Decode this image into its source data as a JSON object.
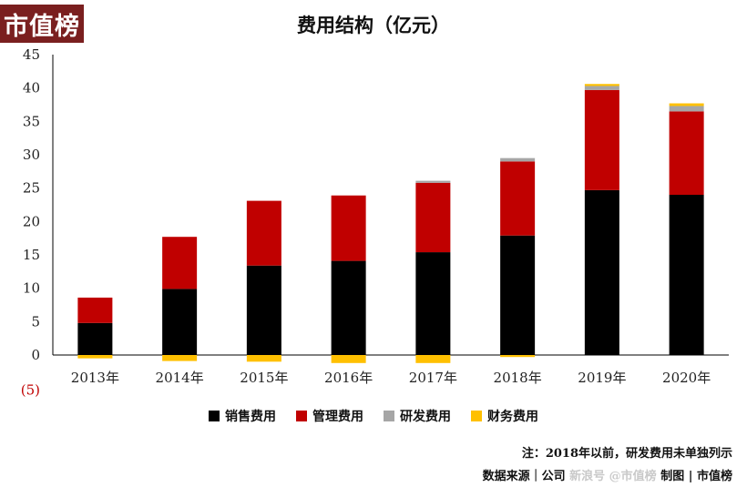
{
  "logo": {
    "text": "市值榜"
  },
  "chart_data": {
    "type": "bar",
    "stacked": true,
    "title": "费用结构（亿元）",
    "categories": [
      "2013年",
      "2014年",
      "2015年",
      "2016年",
      "2017年",
      "2018年",
      "2019年",
      "2020年"
    ],
    "ylim": [
      -5,
      45
    ],
    "yticks": [
      "(5)",
      "0",
      "5",
      "10",
      "15",
      "20",
      "25",
      "30",
      "35",
      "40",
      "45"
    ],
    "series": [
      {
        "name": "销售费用",
        "color": "#000000",
        "values": [
          4.8,
          9.9,
          13.4,
          14.1,
          15.4,
          17.9,
          24.7,
          24.0
        ]
      },
      {
        "name": "管理费用",
        "color": "#c00000",
        "values": [
          3.8,
          7.8,
          9.7,
          9.8,
          10.4,
          11.1,
          15.0,
          12.5
        ]
      },
      {
        "name": "研发费用",
        "color": "#a6a6a6",
        "values": [
          0,
          0,
          0,
          0,
          0.3,
          0.5,
          0.6,
          0.8
        ]
      },
      {
        "name": "财务费用",
        "color": "#ffc000",
        "values": [
          -0.5,
          -0.9,
          -1.0,
          -1.2,
          -1.2,
          -0.3,
          0.3,
          0.4
        ]
      }
    ],
    "legend_position": "bottom",
    "grid": false
  },
  "footer": {
    "note": "注：2018年以前，研发费用未单独列示",
    "source_left": "数据来源｜公司",
    "source_right": "制图 | 市值榜",
    "watermark": "新浪号 @市值榜"
  }
}
